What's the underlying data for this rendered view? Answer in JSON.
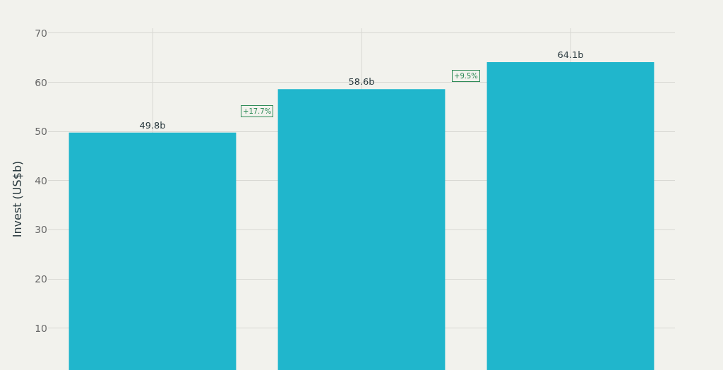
{
  "chart_data": {
    "type": "bar",
    "ylabel": "Invest (US$b)",
    "categories": [
      null,
      null,
      null
    ],
    "values": [
      49.8,
      58.6,
      64.1
    ],
    "value_labels": [
      "49.8b",
      "58.6b",
      "64.1b"
    ],
    "color": "#20b6cc",
    "ylim": [
      1.5,
      71
    ],
    "yticks": [
      10,
      20,
      30,
      40,
      50,
      60,
      70
    ],
    "grid": true,
    "tick_labels": "y",
    "annotations": [
      "+17.7%",
      "+9.5%"
    ]
  }
}
